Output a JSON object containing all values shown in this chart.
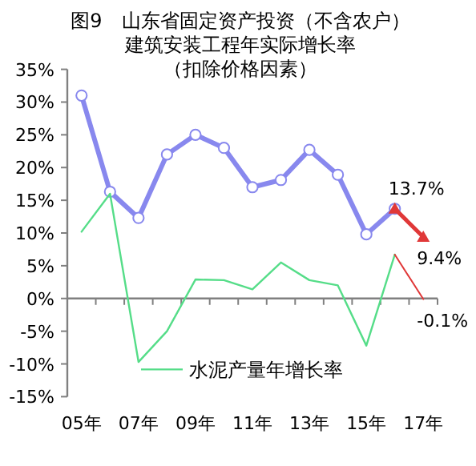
{
  "chart_data": {
    "type": "line",
    "title": "图9　山东省固定资产投资（不含农户）建筑安装工程年实际增长率",
    "subtitle": "（扣除价格因素）",
    "categories": [
      "05年",
      null,
      "07年",
      null,
      "09年",
      null,
      "11年",
      null,
      "13年",
      null,
      "15年",
      null,
      "17年"
    ],
    "series": [
      {
        "color": "#8888ee",
        "marker": "circle",
        "values": [
          31.0,
          16.3,
          12.3,
          22.0,
          25.0,
          23.0,
          17.0,
          18.1,
          22.7,
          18.9,
          9.8,
          13.7,
          null
        ]
      },
      {
        "name": "水泥产量年增长率",
        "color": "#55dd88",
        "values": [
          10.2,
          16.0,
          -9.7,
          -5.0,
          2.9,
          2.8,
          1.4,
          5.5,
          2.8,
          2.0,
          -7.2,
          6.7,
          null
        ]
      },
      {
        "color": "#e03838",
        "marker": "triangle",
        "values": [
          null,
          null,
          null,
          null,
          null,
          null,
          null,
          null,
          null,
          null,
          null,
          13.7,
          9.4
        ],
        "value_labels": [
          null,
          null,
          null,
          null,
          null,
          null,
          null,
          null,
          null,
          null,
          null,
          "13.7%",
          "9.4%"
        ]
      },
      {
        "color": "#e03838",
        "values": [
          null,
          null,
          null,
          null,
          null,
          null,
          null,
          null,
          null,
          null,
          null,
          6.7,
          -0.1
        ],
        "value_labels": [
          null,
          null,
          null,
          null,
          null,
          null,
          null,
          null,
          null,
          null,
          null,
          null,
          "-0.1%"
        ]
      }
    ],
    "ylim": [
      -15,
      35
    ],
    "yticks": [
      {
        "value": -15,
        "label": "-15%"
      },
      {
        "value": -10,
        "label": "-10%"
      },
      {
        "value": -5,
        "label": "-5%"
      },
      {
        "value": 0,
        "label": "0%"
      },
      {
        "value": 5,
        "label": "5%"
      },
      {
        "value": 10,
        "label": "10%"
      },
      {
        "value": 15,
        "label": "15%"
      },
      {
        "value": 20,
        "label": "20%"
      },
      {
        "value": 25,
        "label": "25%"
      },
      {
        "value": 30,
        "label": "30%"
      },
      {
        "value": 35,
        "label": "35%"
      }
    ],
    "legend": "bottom"
  }
}
